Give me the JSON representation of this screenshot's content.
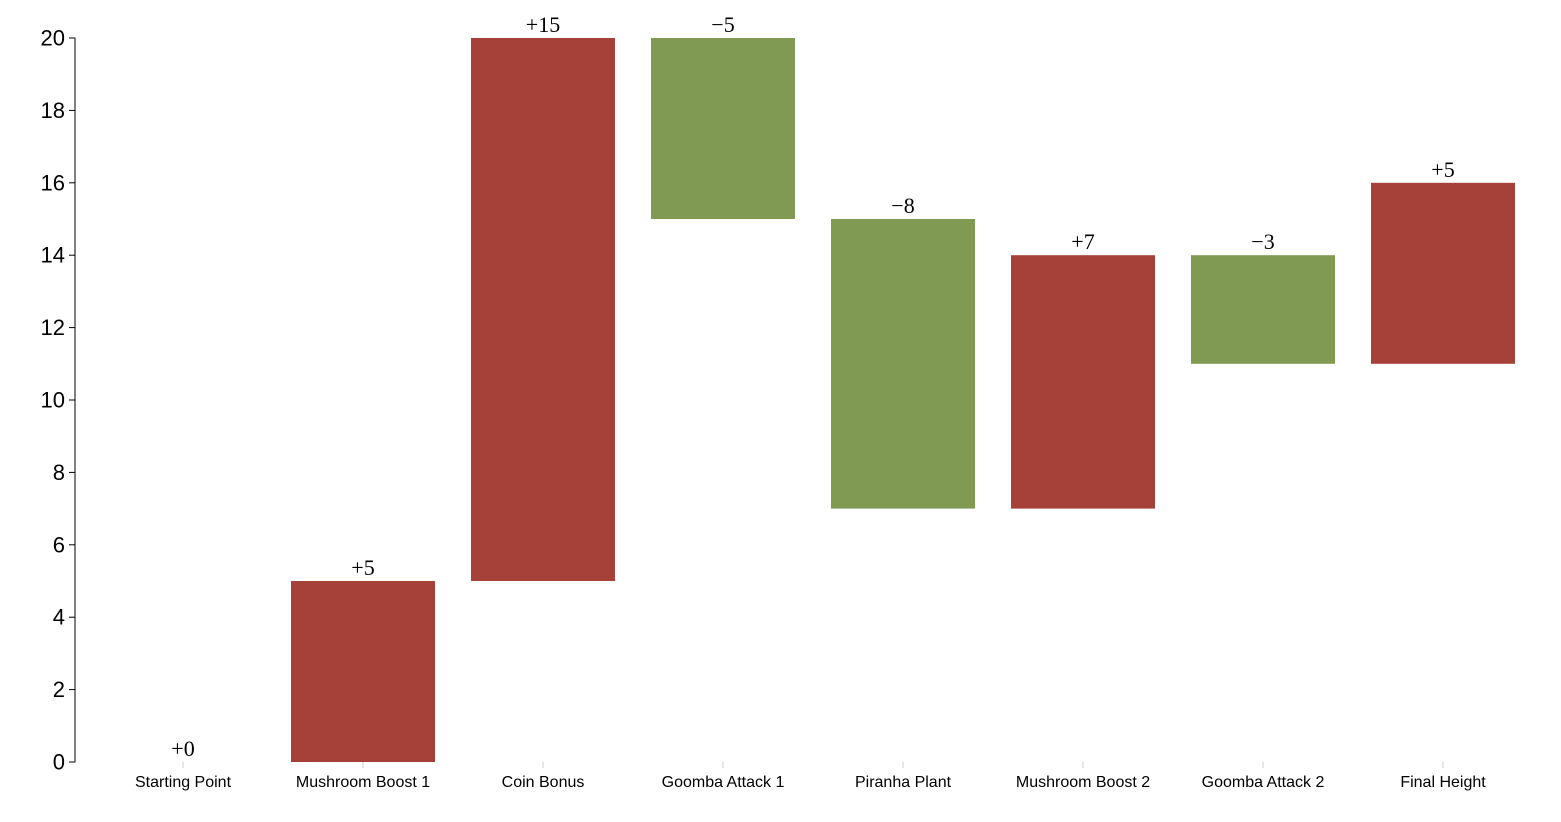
{
  "chart_data": {
    "type": "bar",
    "subtype": "waterfall",
    "title": "",
    "xlabel": "",
    "ylabel": "",
    "ylim": [
      0,
      20
    ],
    "yticks": [
      0,
      2,
      4,
      6,
      8,
      10,
      12,
      14,
      16,
      18,
      20
    ],
    "grid": false,
    "categories": [
      "Starting Point",
      "Mushroom Boost 1",
      "Coin Bonus",
      "Goomba Attack 1",
      "Piranha Plant",
      "Mushroom Boost 2",
      "Goomba Attack 2",
      "Final Height"
    ],
    "bars": [
      {
        "start": 0,
        "end": 0,
        "label": "+0",
        "color": "#a54139"
      },
      {
        "start": 0,
        "end": 5,
        "label": "+5",
        "color": "#a54139"
      },
      {
        "start": 5,
        "end": 20,
        "label": "+15",
        "color": "#a54139"
      },
      {
        "start": 20,
        "end": 15,
        "label": "−5",
        "color": "#819a52"
      },
      {
        "start": 15,
        "end": 7,
        "label": "−8",
        "color": "#819a52"
      },
      {
        "start": 7,
        "end": 14,
        "label": "+7",
        "color": "#a54139"
      },
      {
        "start": 14,
        "end": 11,
        "label": "−3",
        "color": "#819a52"
      },
      {
        "start": 11,
        "end": 16,
        "label": "+5",
        "color": "#a54139"
      }
    ],
    "increase_color": "#a54139",
    "decrease_color": "#819a52"
  }
}
